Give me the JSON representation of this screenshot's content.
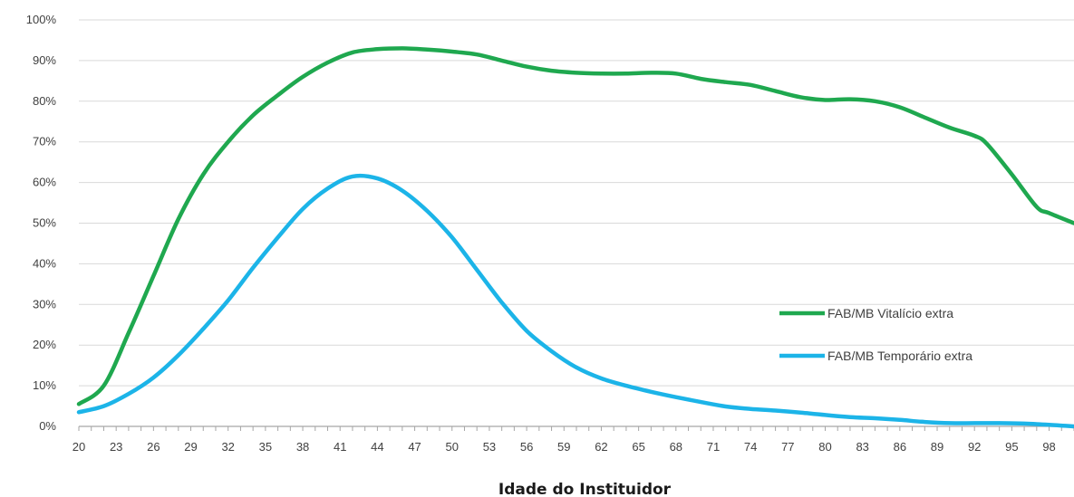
{
  "chart_data": {
    "type": "line",
    "title": "",
    "xlabel": "Idade do Instituidor",
    "ylabel": "",
    "x_ticks": [
      20,
      23,
      26,
      29,
      32,
      35,
      38,
      41,
      44,
      47,
      50,
      53,
      56,
      59,
      62,
      65,
      68,
      71,
      74,
      77,
      80,
      83,
      86,
      89,
      92,
      95,
      98
    ],
    "xlim": [
      20,
      100
    ],
    "y_ticks": [
      "0%",
      "10%",
      "20%",
      "30%",
      "40%",
      "50%",
      "60%",
      "70%",
      "80%",
      "90%",
      "100%"
    ],
    "ylim": [
      0,
      100
    ],
    "grid": "horizontal",
    "legend_position": "bottom-right",
    "series": [
      {
        "name": "FAB/MB Vitalício extra",
        "color": "#1fa84f",
        "x": [
          20,
          22,
          24,
          26,
          28,
          30,
          32,
          34,
          36,
          38,
          40,
          42,
          44,
          46,
          48,
          50,
          52,
          54,
          56,
          58,
          60,
          62,
          64,
          66,
          68,
          70,
          72,
          74,
          76,
          78,
          80,
          82,
          84,
          86,
          88,
          90,
          92,
          93,
          95,
          97,
          98,
          100
        ],
        "y": [
          5.5,
          10,
          23,
          37,
          51,
          62,
          70,
          76.5,
          81.5,
          86,
          89.5,
          92,
          92.8,
          93,
          92.7,
          92.2,
          91.5,
          90,
          88.5,
          87.5,
          87,
          86.8,
          86.8,
          87,
          86.8,
          85.5,
          84.7,
          84,
          82.5,
          81,
          80.3,
          80.5,
          80,
          78.5,
          76,
          73.5,
          71.5,
          69.5,
          62,
          54,
          52.5,
          50
        ]
      },
      {
        "name": "FAB/MB Temporário extra",
        "color": "#1cb4e8",
        "x": [
          20,
          22,
          24,
          26,
          28,
          30,
          32,
          34,
          36,
          38,
          40,
          42,
          44,
          46,
          48,
          50,
          52,
          54,
          56,
          58,
          60,
          62,
          64,
          66,
          68,
          70,
          72,
          74,
          76,
          78,
          80,
          82,
          84,
          86,
          88,
          90,
          92,
          94,
          96,
          98,
          100
        ],
        "y": [
          3.5,
          5,
          8,
          12,
          17.5,
          24,
          31,
          39,
          46.5,
          53.5,
          58.5,
          61.5,
          61,
          58,
          53,
          46.5,
          38.5,
          30.5,
          23.5,
          18.5,
          14.5,
          11.8,
          10,
          8.5,
          7.2,
          6,
          4.9,
          4.3,
          3.9,
          3.4,
          2.8,
          2.3,
          2,
          1.6,
          1.1,
          0.8,
          0.8,
          0.8,
          0.7,
          0.4,
          0
        ]
      }
    ]
  }
}
